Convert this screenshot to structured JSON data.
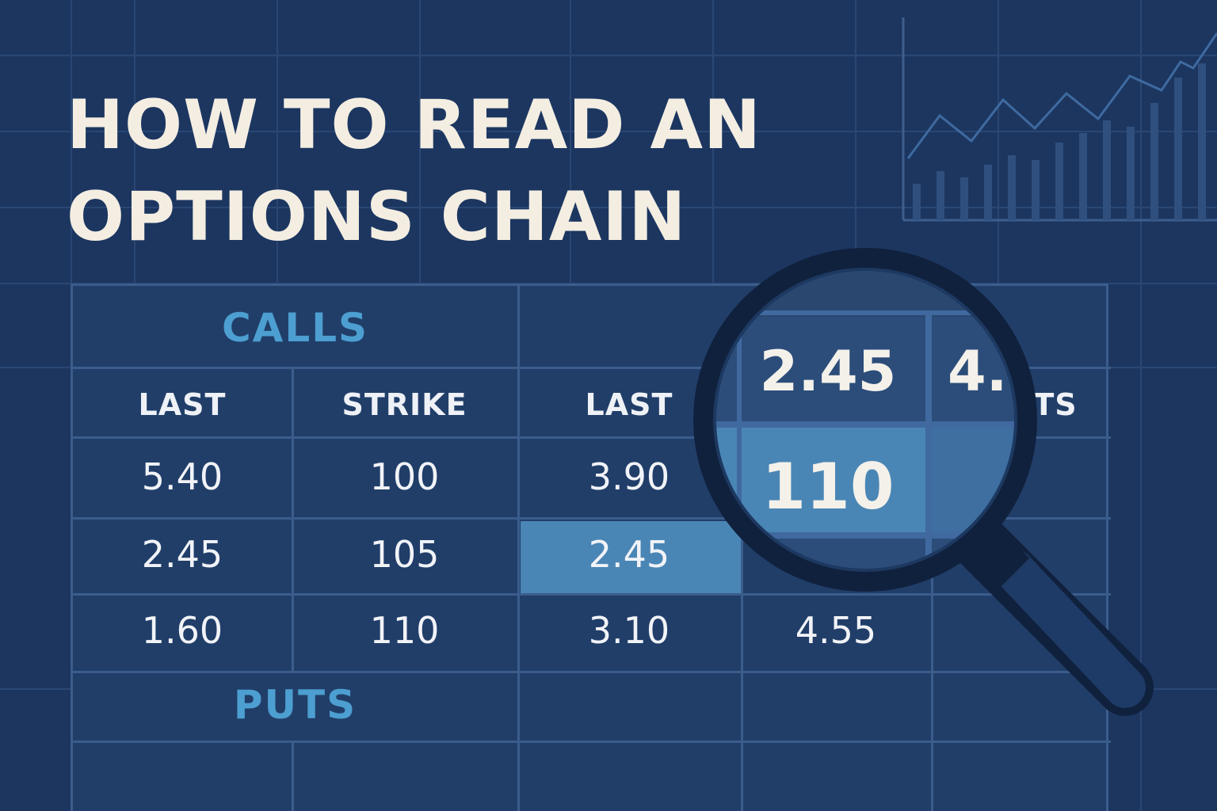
{
  "title": {
    "line1": "HOW TO READ AN",
    "line2": "OPTIONS CHAIN"
  },
  "colors": {
    "background": "#1c3660",
    "title": "#f4eee2",
    "section_label": "#4c9fd0",
    "highlight_cell": "#4a86b5"
  },
  "table": {
    "calls_label": "CALLS",
    "puts_label": "PUTS",
    "headers": [
      "LAST",
      "STRIKE",
      "LAST",
      "TS"
    ],
    "rows": [
      [
        "5.40",
        "100",
        "3.90"
      ],
      [
        "2.45",
        "105",
        "2.45"
      ],
      [
        "1.60",
        "110",
        "3.10",
        "4.55"
      ]
    ]
  },
  "magnifier": {
    "top_value": "2.45",
    "partial_value": "4.",
    "highlight_value": "110"
  },
  "icons": {
    "magnifier": "magnifying-glass-icon",
    "chart": "line-bar-chart-icon"
  }
}
